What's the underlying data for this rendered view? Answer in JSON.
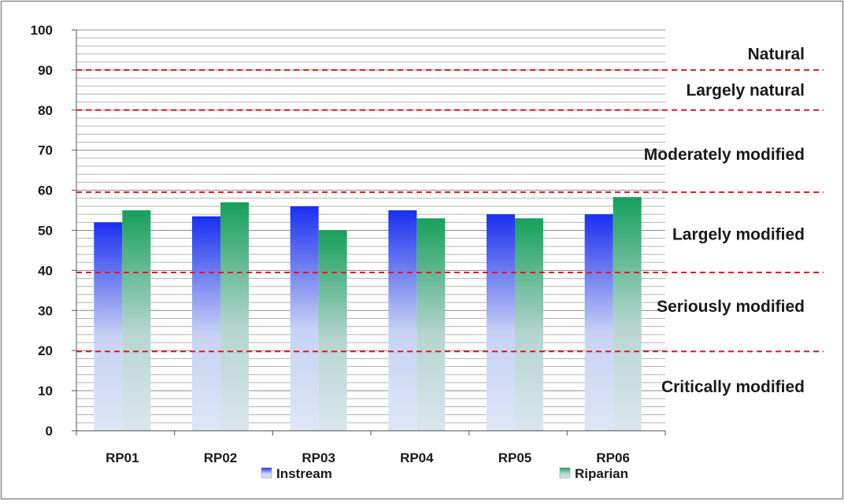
{
  "chart_data": {
    "type": "bar",
    "categories": [
      "RP01",
      "RP02",
      "RP03",
      "RP04",
      "RP05",
      "RP06"
    ],
    "series": [
      {
        "name": "Instream",
        "values": [
          52,
          53.5,
          56,
          55,
          54,
          54
        ],
        "color": "#1a2ff0"
      },
      {
        "name": "Riparian",
        "values": [
          55,
          57,
          50,
          53,
          53,
          58.3
        ],
        "color": "#16a05a"
      }
    ],
    "title": "",
    "xlabel": "",
    "ylabel": "",
    "ylim": [
      0,
      100
    ],
    "yticks": [
      0,
      10,
      20,
      30,
      40,
      50,
      60,
      70,
      80,
      90,
      100
    ],
    "grid": true,
    "legend": "bottom",
    "thresholds": [
      {
        "value": 90,
        "color": "#e8141c"
      },
      {
        "value": 80,
        "color": "#e8141c"
      },
      {
        "value": 59.5,
        "color": "#e8141c"
      },
      {
        "value": 39.5,
        "color": "#e8141c"
      },
      {
        "value": 19.8,
        "color": "#e8141c"
      }
    ],
    "annotations": [
      {
        "text": "Natural",
        "y": 94
      },
      {
        "text": "Largely natural",
        "y": 85
      },
      {
        "text": "Moderately modified",
        "y": 69
      },
      {
        "text": "Largely modified",
        "y": 49
      },
      {
        "text": "Seriously modified",
        "y": 31
      },
      {
        "text": "Critically modified",
        "y": 11
      }
    ]
  }
}
